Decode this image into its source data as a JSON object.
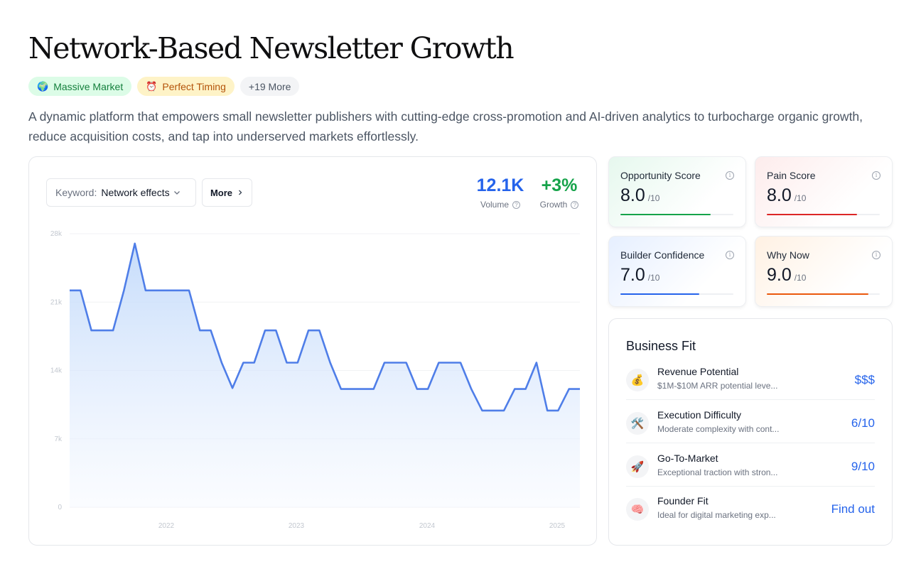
{
  "title": "Network-Based Newsletter Growth",
  "tags": [
    {
      "emoji": "🌍",
      "label": "Massive Market"
    },
    {
      "emoji": "⏰",
      "label": "Perfect Timing"
    },
    {
      "emoji": "",
      "label": "+19 More"
    }
  ],
  "description": "A dynamic platform that empowers small newsletter publishers with cutting-edge cross-promotion and AI-driven analytics to turbocharge organic growth, reduce acquisition costs, and tap into underserved markets effortlessly.",
  "chart_panel": {
    "keyword_label": "Keyword:",
    "keyword_value": "Network effects",
    "more_label": "More",
    "volume_value": "12.1K",
    "volume_label": "Volume",
    "growth_value": "+3%",
    "growth_label": "Growth",
    "colors": {
      "volume": "#2563eb",
      "growth": "#16a34a",
      "line": "#4f7ee8"
    }
  },
  "chart_data": {
    "type": "area",
    "title": "",
    "xlabel": "",
    "ylabel": "",
    "x_tick_labels": [
      "2022",
      "2023",
      "2024",
      "2025"
    ],
    "y_tick_labels": [
      "0",
      "7k",
      "14k",
      "21k",
      "28k"
    ],
    "ylim": [
      0,
      28000
    ],
    "grid": true,
    "series": [
      {
        "values": [
          22200,
          22200,
          18100,
          18100,
          18100,
          22200,
          27000,
          22200,
          22200,
          22200,
          22200,
          22200,
          18100,
          18100,
          14800,
          12200,
          14800,
          14800,
          18100,
          18100,
          14800,
          14800,
          18100,
          18100,
          14800,
          12100,
          12100,
          12100,
          12100,
          14800,
          14800,
          14800,
          12100,
          12100,
          14800,
          14800,
          14800,
          12100,
          9900,
          9900,
          9900,
          12100,
          12100,
          14800,
          9900,
          9900,
          12100,
          12100
        ]
      }
    ]
  },
  "scores": [
    {
      "title": "Opportunity Score",
      "value": "8.0",
      "denominator": "/10",
      "fraction": 0.8,
      "color": "#16a34a"
    },
    {
      "title": "Pain Score",
      "value": "8.0",
      "denominator": "/10",
      "fraction": 0.8,
      "color": "#dc2626"
    },
    {
      "title": "Builder Confidence",
      "value": "7.0",
      "denominator": "/10",
      "fraction": 0.7,
      "color": "#2563eb"
    },
    {
      "title": "Why Now",
      "value": "9.0",
      "denominator": "/10",
      "fraction": 0.9,
      "color": "#ea580c"
    }
  ],
  "business_fit": {
    "title": "Business Fit",
    "rows": [
      {
        "icon": "money-bag-icon",
        "emoji": "💰",
        "name": "Revenue Potential",
        "sub": "$1M-$10M ARR potential leve...",
        "value": "$$$"
      },
      {
        "icon": "tools-icon",
        "emoji": "🛠️",
        "name": "Execution Difficulty",
        "sub": "Moderate complexity with cont...",
        "value": "6/10"
      },
      {
        "icon": "rocket-icon",
        "emoji": "🚀",
        "name": "Go-To-Market",
        "sub": "Exceptional traction with stron...",
        "value": "9/10"
      },
      {
        "icon": "brain-icon",
        "emoji": "🧠",
        "name": "Founder Fit",
        "sub": "Ideal for digital marketing exp...",
        "value": "Find out"
      }
    ]
  }
}
